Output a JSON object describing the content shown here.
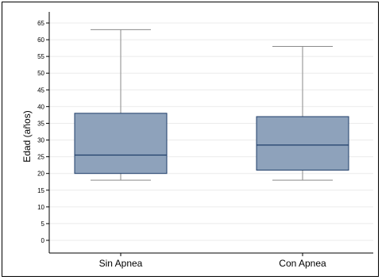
{
  "chart_data": {
    "type": "boxplot",
    "title": "",
    "xlabel": "",
    "ylabel": "Edad (años)",
    "ylim": [
      0,
      68
    ],
    "yticks": [
      0,
      5,
      10,
      15,
      20,
      25,
      30,
      35,
      40,
      45,
      50,
      55,
      60,
      65
    ],
    "grid": true,
    "legend": "none",
    "categories": [
      "Sin Apnea",
      "Con Apnea"
    ],
    "boxes": [
      {
        "category": "Sin Apnea",
        "min": 18,
        "q1": 20,
        "median": 25.5,
        "q3": 38,
        "max": 63
      },
      {
        "category": "Con Apnea",
        "min": 18,
        "q1": 21,
        "median": 28.5,
        "q3": 37,
        "max": 58
      }
    ],
    "colors": {
      "box_fill": "#8ea2bb",
      "box_stroke": "#1f3e6a",
      "whisker": "#8a8a8a",
      "grid": "#ebebeb",
      "plot_bg": "#ffffff"
    }
  }
}
